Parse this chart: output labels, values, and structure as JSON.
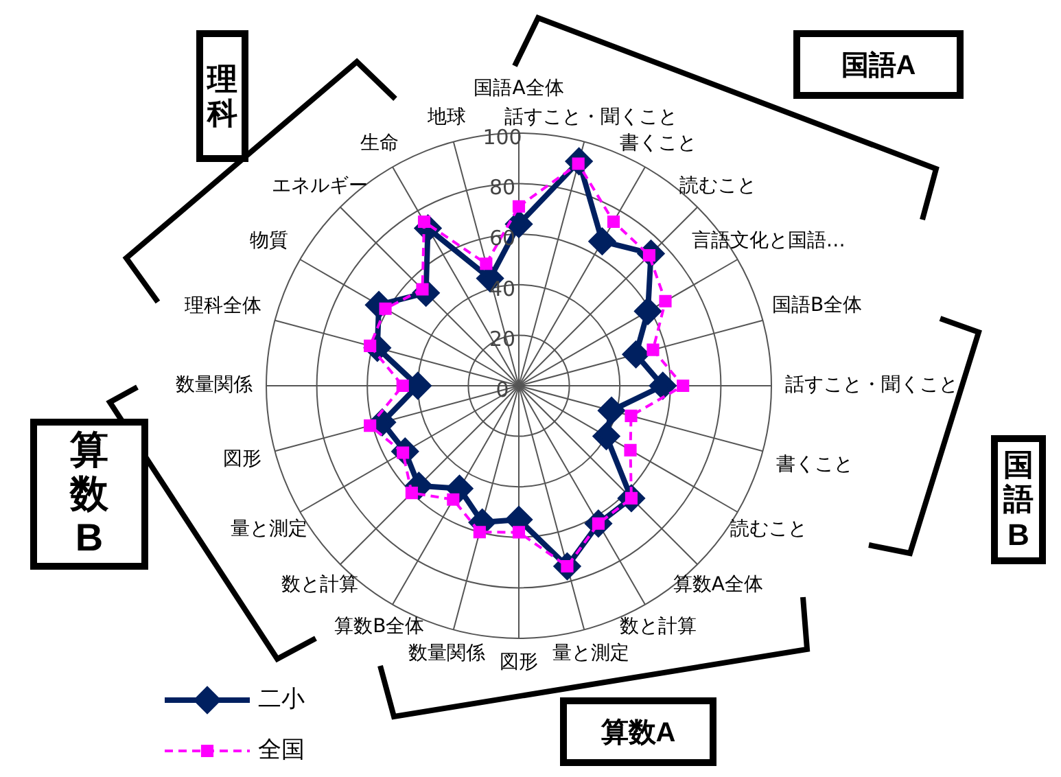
{
  "chart_data": {
    "type": "radar",
    "categories": [
      "国語A全体",
      "話すこと・聞くこと",
      "書くこと",
      "読むこと",
      "言語文化と国語…",
      "国語B全体",
      "話すこと・聞くこと",
      "書くこと",
      "読むこと",
      "算数A全体",
      "数と計算",
      "量と測定",
      "図形",
      "数量関係",
      "算数B全体",
      "数と計算",
      "量と測定",
      "図形",
      "数量関係",
      "理科全体",
      "物質",
      "エネルギー",
      "生命",
      "地球"
    ],
    "series": [
      {
        "name": "二小",
        "color": "#002060",
        "marker": "diamond",
        "line_style": "solid",
        "values": [
          64,
          92,
          66,
          74,
          59,
          48,
          57,
          38,
          40,
          63,
          63,
          74,
          53,
          56,
          47,
          56,
          52,
          56,
          40,
          58,
          64,
          52,
          72,
          44
        ]
      },
      {
        "name": "全国",
        "color": "#ff00ff",
        "marker": "square",
        "line_style": "dashed",
        "values": [
          71,
          91,
          75,
          73,
          67,
          55,
          65,
          46,
          51,
          63,
          63,
          74,
          58,
          60,
          52,
          60,
          53,
          61,
          46,
          61,
          61,
          54,
          75,
          50
        ]
      }
    ],
    "ylim": [
      0,
      100
    ],
    "yticks": [
      0,
      20,
      40,
      60,
      80,
      100
    ],
    "grid": true,
    "legend": "bottom left",
    "annotations": [
      "国語A",
      "国語B",
      "算数A",
      "算数B",
      "理科"
    ]
  }
}
